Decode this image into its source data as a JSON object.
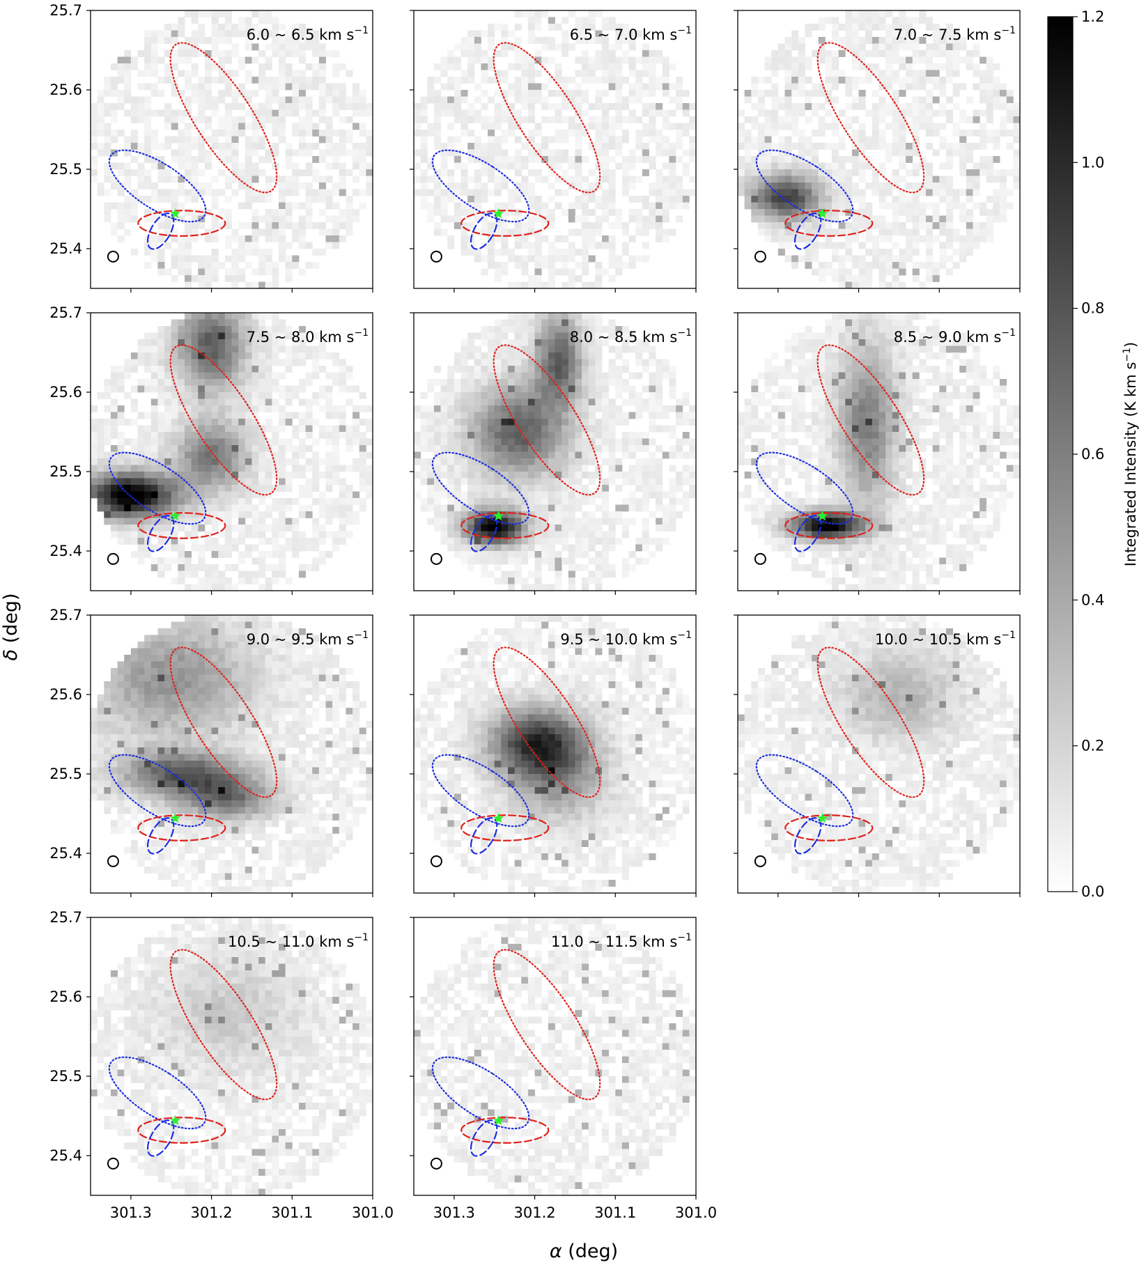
{
  "chart_data": {
    "type": "heatmap",
    "layout": "channel-map grid, 4 rows x 3 columns, 11 panels",
    "xlabel": "α (deg)",
    "ylabel": "δ (deg)",
    "xlim": [
      301.35,
      301.0
    ],
    "ylim": [
      25.35,
      25.7
    ],
    "x_ticks": [
      301.3,
      301.2,
      301.1,
      301.0
    ],
    "x_tick_labels": [
      "301.3",
      "301.2",
      "301.1",
      "301.0"
    ],
    "y_ticks": [
      25.4,
      25.5,
      25.6,
      25.7
    ],
    "y_tick_labels": [
      "25.4",
      "25.5",
      "25.6",
      "25.7"
    ],
    "colormap": "Greys",
    "colorbar": {
      "label": "Integrated Intensity (K km s",
      "label_sup": "−1",
      "label_close": ")",
      "range": [
        0.0,
        1.2
      ],
      "ticks": [
        0.0,
        0.2,
        0.4,
        0.6,
        0.8,
        1.0,
        1.2
      ],
      "tick_labels": [
        "0.0",
        "0.2",
        "0.4",
        "0.6",
        "0.8",
        "1.0",
        "1.2"
      ]
    },
    "panel_unit": "km s",
    "panel_unit_sup": "−1",
    "panels": [
      {
        "vrange": "6.0 ~ 6.5"
      },
      {
        "vrange": "6.5 ~ 7.0"
      },
      {
        "vrange": "7.0 ~ 7.5"
      },
      {
        "vrange": "7.5 ~ 8.0"
      },
      {
        "vrange": "8.0 ~ 8.5"
      },
      {
        "vrange": "8.5 ~ 9.0"
      },
      {
        "vrange": "9.0 ~ 9.5"
      },
      {
        "vrange": "9.5 ~ 10.0"
      },
      {
        "vrange": "10.0 ~ 10.5"
      },
      {
        "vrange": "10.5 ~ 11.0"
      },
      {
        "vrange": "11.0 ~ 11.5"
      }
    ],
    "emission_features": [
      {
        "panel": 2,
        "ra": 301.29,
        "dec": 25.465,
        "peak": 0.85,
        "sx": 0.03,
        "sy": 0.02
      },
      {
        "panel": 3,
        "ra": 301.3,
        "dec": 25.47,
        "peak": 1.2,
        "sx": 0.04,
        "sy": 0.02
      },
      {
        "panel": 3,
        "ra": 301.2,
        "dec": 25.52,
        "peak": 0.6,
        "sx": 0.03,
        "sy": 0.03
      },
      {
        "panel": 3,
        "ra": 301.2,
        "dec": 25.66,
        "peak": 0.7,
        "sx": 0.03,
        "sy": 0.04
      },
      {
        "panel": 4,
        "ra": 301.25,
        "dec": 25.43,
        "peak": 1.2,
        "sx": 0.025,
        "sy": 0.015
      },
      {
        "panel": 4,
        "ra": 301.22,
        "dec": 25.55,
        "peak": 0.7,
        "sx": 0.04,
        "sy": 0.04
      },
      {
        "panel": 4,
        "ra": 301.17,
        "dec": 25.64,
        "peak": 0.7,
        "sx": 0.02,
        "sy": 0.04
      },
      {
        "panel": 5,
        "ra": 301.24,
        "dec": 25.432,
        "peak": 1.2,
        "sx": 0.03,
        "sy": 0.012
      },
      {
        "panel": 5,
        "ra": 301.19,
        "dec": 25.56,
        "peak": 0.55,
        "sx": 0.025,
        "sy": 0.07
      },
      {
        "panel": 6,
        "ra": 301.24,
        "dec": 25.5,
        "peak": 0.7,
        "sx": 0.05,
        "sy": 0.02
      },
      {
        "panel": 6,
        "ra": 301.18,
        "dec": 25.47,
        "peak": 0.6,
        "sx": 0.04,
        "sy": 0.02
      },
      {
        "panel": 6,
        "ra": 301.25,
        "dec": 25.62,
        "peak": 0.45,
        "sx": 0.07,
        "sy": 0.05
      },
      {
        "panel": 7,
        "ra": 301.2,
        "dec": 25.54,
        "peak": 0.8,
        "sx": 0.04,
        "sy": 0.03
      },
      {
        "panel": 7,
        "ra": 301.17,
        "dec": 25.5,
        "peak": 0.45,
        "sx": 0.04,
        "sy": 0.04
      },
      {
        "panel": 8,
        "ra": 301.15,
        "dec": 25.6,
        "peak": 0.3,
        "sx": 0.05,
        "sy": 0.04
      },
      {
        "panel": 9,
        "ra": 301.18,
        "dec": 25.58,
        "peak": 0.2,
        "sx": 0.06,
        "sy": 0.05
      }
    ],
    "overlays": [
      {
        "name": "red-dotted-ellipse",
        "ra": 301.185,
        "dec": 25.565,
        "rx": 0.035,
        "ry": 0.11,
        "angle_deg": -33,
        "color": "#e0201b",
        "style": "dotted"
      },
      {
        "name": "blue-dotted-ellipse",
        "ra": 301.267,
        "dec": 25.479,
        "rx": 0.028,
        "ry": 0.07,
        "angle_deg": -57,
        "color": "#1b2ce0",
        "style": "dotted"
      },
      {
        "name": "red-dashed-ellipse",
        "ra": 301.237,
        "dec": 25.432,
        "rx": 0.054,
        "ry": 0.016,
        "angle_deg": 0,
        "color": "#e0201b",
        "style": "dashed"
      },
      {
        "name": "blue-dashed-ellipse",
        "ra": 301.263,
        "dec": 25.422,
        "rx": 0.012,
        "ry": 0.025,
        "angle_deg": 30,
        "color": "#1b2ce0",
        "style": "dashed"
      },
      {
        "name": "source-star",
        "ra": 301.245,
        "dec": 25.444,
        "color": "#2cf02c"
      },
      {
        "name": "beam-circle",
        "ra": 301.322,
        "dec": 25.39,
        "color": "#000000"
      }
    ]
  }
}
